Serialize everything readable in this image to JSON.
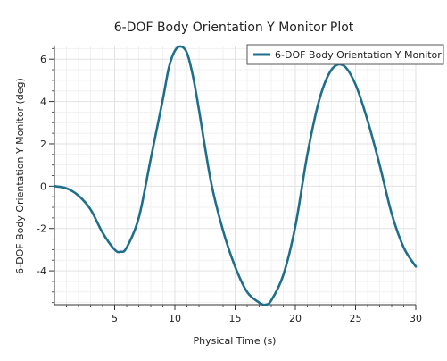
{
  "chart_data": {
    "type": "line",
    "title": "6-DOF Body Orientation Y Monitor Plot",
    "xlabel": "Physical Time (s)",
    "ylabel": "6-DOF Body Orientation Y Monitor (deg)",
    "xlim": [
      0,
      30
    ],
    "ylim": [
      -5.6,
      6.6
    ],
    "xticks": [
      5,
      10,
      15,
      20,
      25,
      30
    ],
    "xtick_labels": [
      "5",
      "10",
      "15",
      "20",
      "25",
      "30"
    ],
    "yticks": [
      -4,
      -2,
      0,
      2,
      4,
      6
    ],
    "ytick_labels": [
      "-4",
      "-2",
      "0",
      "2",
      "4",
      "6"
    ],
    "grid": true,
    "legend_position": "top-right",
    "series": [
      {
        "name": "6-DOF Body Orientation Y Monitor",
        "color": "#1f6f8b",
        "x": [
          0,
          1,
          2,
          3,
          4,
          5,
          5.5,
          6,
          7,
          8,
          9,
          9.5,
          10,
          10.5,
          11,
          11.5,
          12,
          13,
          14,
          15,
          16,
          17,
          17.5,
          18,
          19,
          20,
          21,
          22,
          23,
          24,
          25,
          26,
          27,
          28,
          29,
          30
        ],
        "y": [
          0.0,
          -0.1,
          -0.45,
          -1.1,
          -2.2,
          -3.0,
          -3.1,
          -2.9,
          -1.5,
          1.3,
          4.1,
          5.6,
          6.4,
          6.6,
          6.3,
          5.2,
          3.6,
          0.2,
          -2.1,
          -3.8,
          -5.0,
          -5.5,
          -5.6,
          -5.4,
          -4.2,
          -1.9,
          1.5,
          4.1,
          5.5,
          5.7,
          4.8,
          3.1,
          1.0,
          -1.3,
          -2.9,
          -3.8
        ]
      }
    ]
  }
}
